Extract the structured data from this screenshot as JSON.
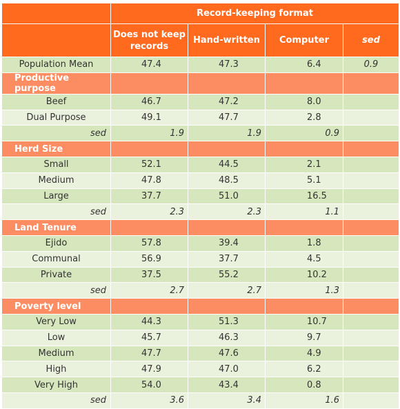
{
  "table": {
    "title": "Record-keeping format",
    "columns": [
      "Does not keep records",
      "Hand-written",
      "Computer",
      "sed"
    ],
    "population_mean": {
      "label": "Population Mean",
      "values": [
        "47.4",
        "47.3",
        "6.4"
      ],
      "sed": "0.9"
    },
    "sections": [
      {
        "name": "Productive purpose",
        "rows": [
          {
            "label": "Beef",
            "values": [
              "46.7",
              "47.2",
              "8.0"
            ]
          },
          {
            "label": "Dual Purpose",
            "values": [
              "49.1",
              "47.7",
              "2.8"
            ]
          }
        ],
        "sed": {
          "label": "sed",
          "values": [
            "1.9",
            "1.9",
            "0.9"
          ]
        }
      },
      {
        "name": "Herd Size",
        "rows": [
          {
            "label": "Small",
            "values": [
              "52.1",
              "44.5",
              "2.1"
            ]
          },
          {
            "label": "Medium",
            "values": [
              "47.8",
              "48.5",
              "5.1"
            ]
          },
          {
            "label": "Large",
            "values": [
              "37.7",
              "51.0",
              "16.5"
            ]
          }
        ],
        "sed": {
          "label": "sed",
          "values": [
            "2.3",
            "2.3",
            "1.1"
          ]
        }
      },
      {
        "name": "Land Tenure",
        "rows": [
          {
            "label": "Ejido",
            "values": [
              "57.8",
              "39.4",
              "1.8"
            ]
          },
          {
            "label": "Communal",
            "values": [
              "56.9",
              "37.7",
              "4.5"
            ]
          },
          {
            "label": "Private",
            "values": [
              "37.5",
              "55.2",
              "10.2"
            ]
          }
        ],
        "sed": {
          "label": "sed",
          "values": [
            "2.7",
            "2.7",
            "1.3"
          ]
        }
      },
      {
        "name": "Poverty level",
        "rows": [
          {
            "label": "Very Low",
            "values": [
              "44.3",
              "51.3",
              "10.7"
            ]
          },
          {
            "label": "Low",
            "values": [
              "45.7",
              "46.3",
              "9.7"
            ]
          },
          {
            "label": "Medium",
            "values": [
              "47.7",
              "47.6",
              "4.9"
            ]
          },
          {
            "label": "High",
            "values": [
              "47.9",
              "47.0",
              "6.2"
            ]
          },
          {
            "label": "Very High",
            "values": [
              "54.0",
              "43.4",
              "0.8"
            ]
          }
        ],
        "sed": {
          "label": "sed",
          "values": [
            "3.6",
            "3.4",
            "1.6"
          ]
        }
      }
    ]
  },
  "colors": {
    "header": "#ff6a1f",
    "category": "#fc8d62",
    "row_green": "#d6e6bd",
    "row_light": "#eaf2dd"
  }
}
